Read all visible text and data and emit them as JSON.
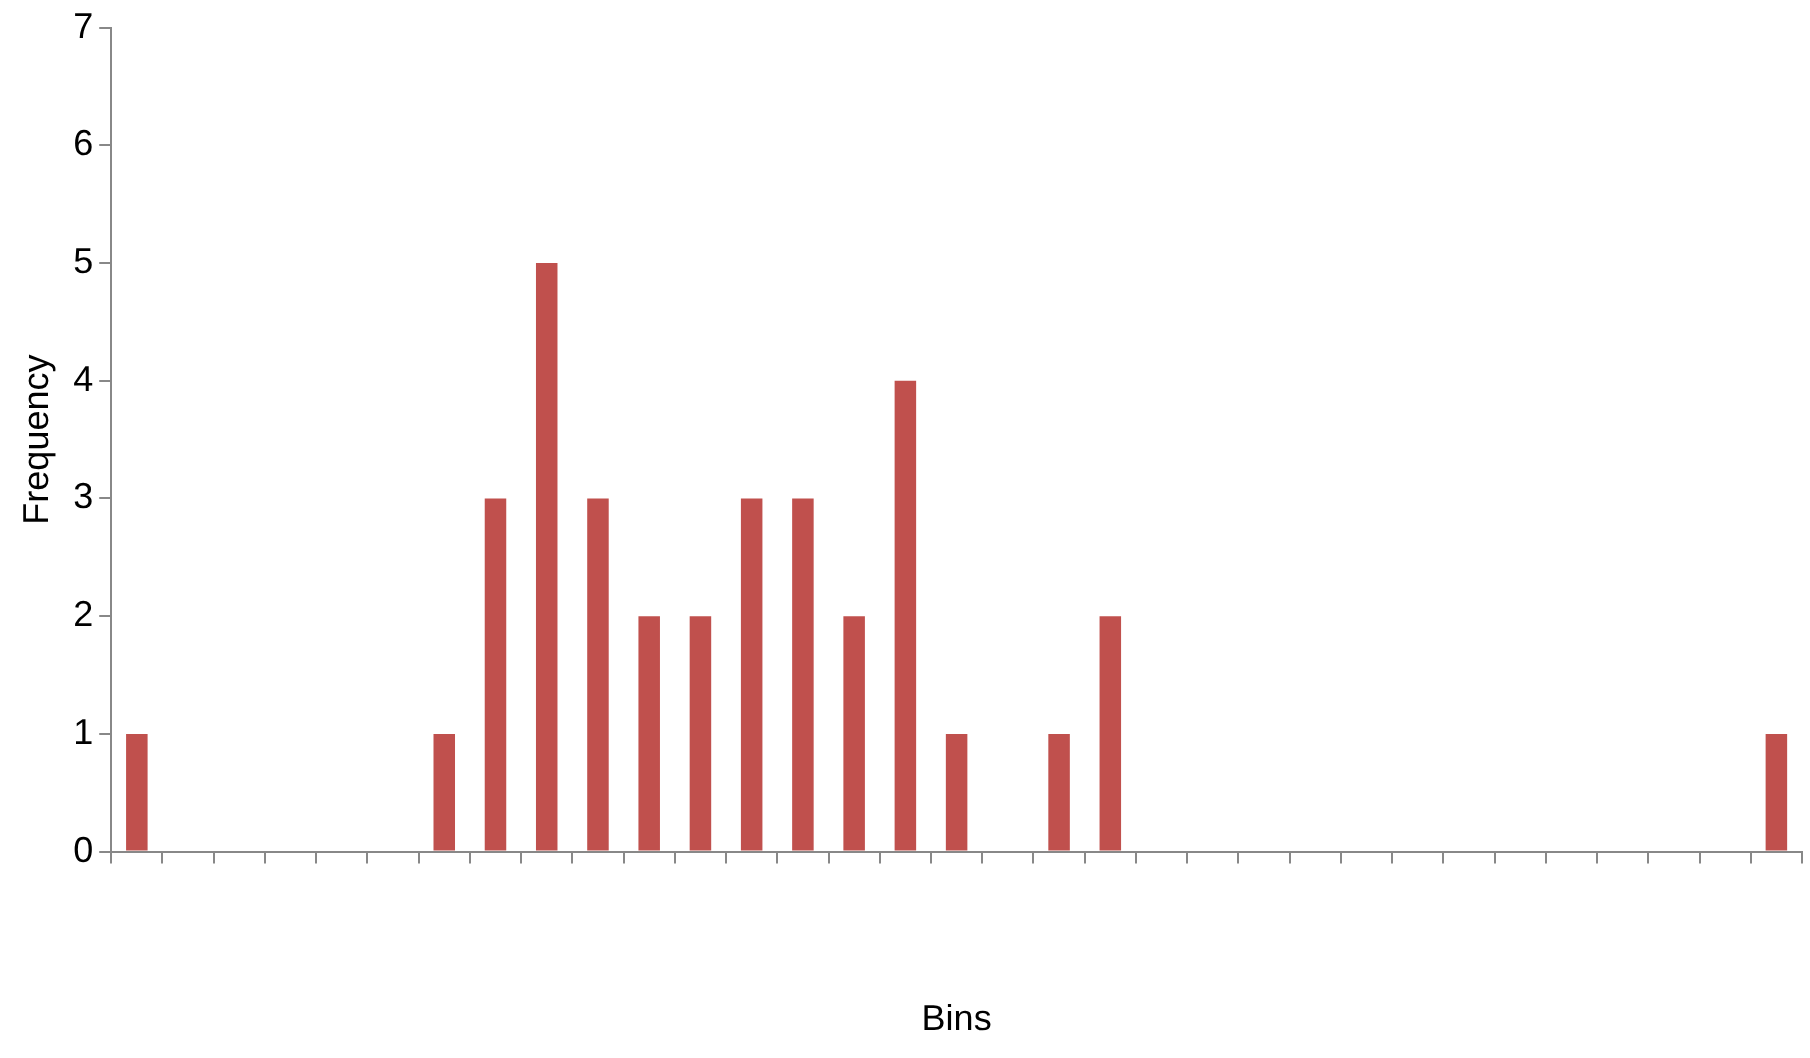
{
  "chart_data": {
    "type": "bar",
    "xlabel": "Bins",
    "ylabel": "Frequency",
    "categories": [
      null,
      null,
      null,
      null,
      null,
      null,
      null,
      null,
      null,
      null,
      null,
      null,
      null,
      null,
      null,
      null,
      null,
      null,
      null,
      null,
      null,
      null,
      null,
      null,
      null,
      null,
      null,
      null,
      null,
      null,
      null,
      null,
      null
    ],
    "values": [
      1,
      0,
      0,
      0,
      0,
      0,
      1,
      3,
      5,
      3,
      2,
      2,
      3,
      3,
      2,
      4,
      1,
      0,
      1,
      2,
      0,
      0,
      0,
      0,
      0,
      0,
      0,
      0,
      0,
      0,
      0,
      0,
      1
    ],
    "color": "#c0504d",
    "ylim": [
      0,
      7
    ],
    "yticks": [
      0,
      1,
      2,
      3,
      4,
      5,
      6,
      7
    ],
    "grid": false,
    "legend": false
  }
}
